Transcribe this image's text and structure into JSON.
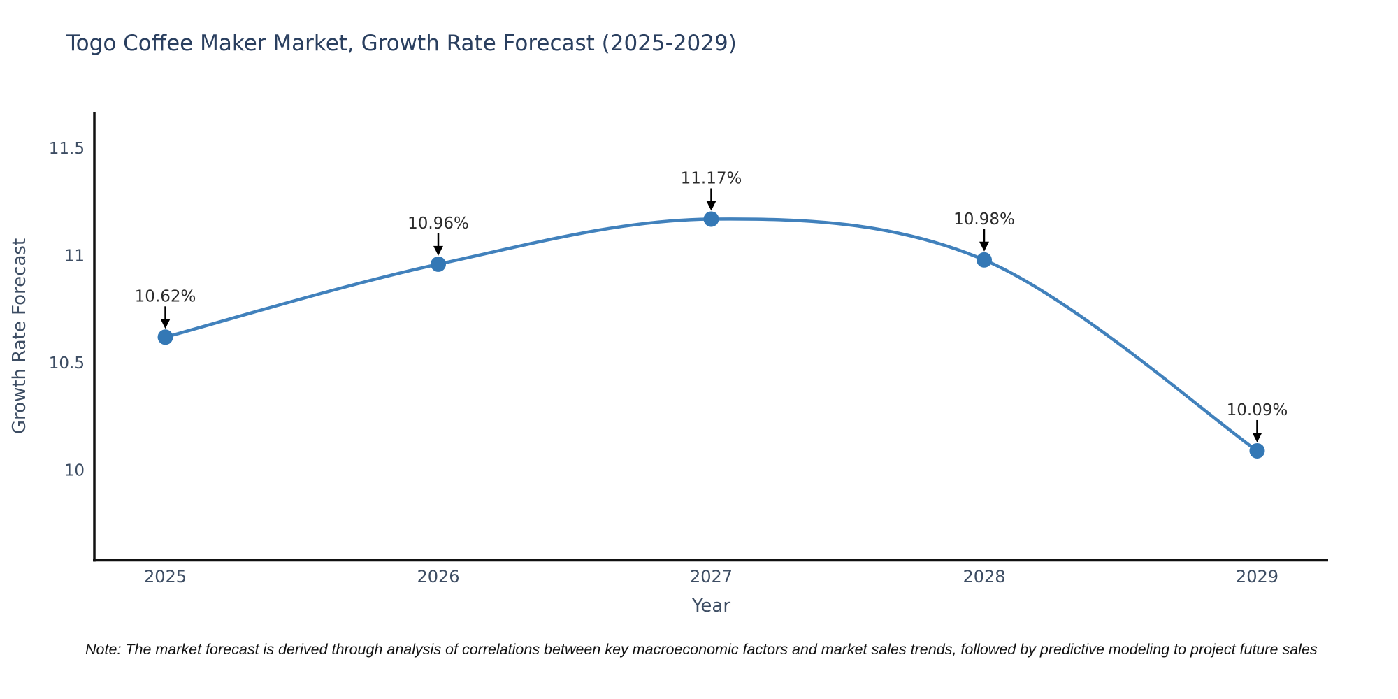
{
  "chart_data": {
    "type": "line",
    "title": "Togo Coffee Maker Market, Growth Rate Forecast (2025-2029)",
    "xlabel": "Year",
    "ylabel": "Growth Rate Forecast",
    "x": [
      2025,
      2026,
      2027,
      2028,
      2029
    ],
    "values": [
      10.62,
      10.96,
      11.17,
      10.98,
      10.09
    ],
    "point_labels": [
      "10.62%",
      "10.96%",
      "11.17%",
      "10.98%",
      "10.09%"
    ],
    "x_tick_labels": [
      "2025",
      "2026",
      "2027",
      "2028",
      "2029"
    ],
    "y_ticks": [
      10,
      10.5,
      11,
      11.5
    ],
    "y_tick_labels": [
      "10",
      "10.5",
      "11",
      "11.5"
    ],
    "xlim": [
      2024.74,
      2029.26
    ],
    "ylim": [
      9.58,
      11.67
    ],
    "grid": false,
    "legend": null,
    "line_color": "#4181bc",
    "marker_color": "#3478b5",
    "annotation_text_color": "#2b2b2b",
    "annotation_arrow_color": "#000000",
    "title_color": "#2a3f5f",
    "tick_label_color": "#3d4d63",
    "axis_color": "#111111"
  },
  "note": "Note: The market forecast is derived through analysis of correlations between key macroeconomic factors and market sales trends, followed by predictive modeling to project future sales"
}
